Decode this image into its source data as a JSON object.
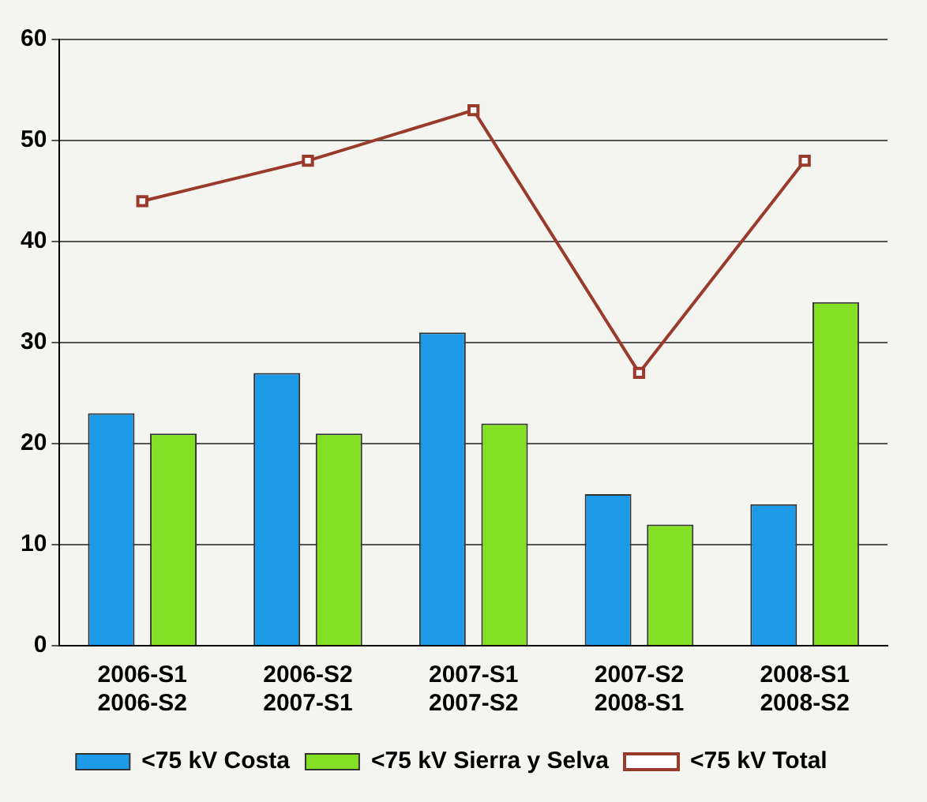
{
  "chart_data": {
    "type": "bar",
    "categories": [
      "2006-S1\n2006-S2",
      "2006-S2\n2007-S1",
      "2007-S1\n2007-S2",
      "2007-S2\n2008-S1",
      "2008-S1\n2008-S2"
    ],
    "series": [
      {
        "name": "<75 kV Costa",
        "color": "#1e9be8",
        "values": [
          23,
          27,
          31,
          15,
          14
        ]
      },
      {
        "name": "<75 kV Sierra y Selva",
        "color": "#84e024",
        "values": [
          21,
          21,
          22,
          12,
          34
        ]
      },
      {
        "name": "<75 kV Total",
        "type": "line",
        "color": "#9a3a2a",
        "values": [
          44,
          48,
          53,
          27,
          48
        ],
        "marker": "square"
      }
    ],
    "ylim": [
      0,
      60
    ],
    "yticks": [
      0,
      10,
      20,
      30,
      40,
      50,
      60
    ],
    "grid": "y",
    "legend": "bottom"
  }
}
